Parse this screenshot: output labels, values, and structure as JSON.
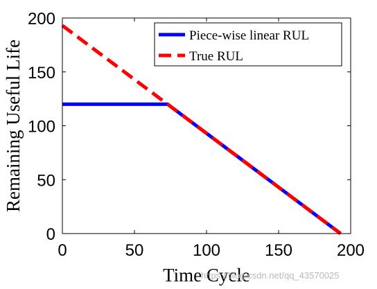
{
  "chart_data": {
    "type": "line",
    "xlabel": "Time Cycle",
    "ylabel": "Remaining Useful Life",
    "xlim": [
      0,
      200
    ],
    "ylim": [
      0,
      200
    ],
    "xticks": [
      0,
      50,
      100,
      150,
      200
    ],
    "yticks": [
      0,
      50,
      100,
      150,
      200
    ],
    "xtick_labels": [
      "0",
      "50",
      "100",
      "150",
      "200"
    ],
    "ytick_labels": [
      "0",
      "50",
      "100",
      "150",
      "200"
    ],
    "grid": false,
    "legend_position": "top-right",
    "series": [
      {
        "name": "Piece-wise linear RUL",
        "color": "#0000ff",
        "style": "solid",
        "x": [
          0,
          73,
          193
        ],
        "y": [
          120,
          120,
          0
        ]
      },
      {
        "name": "True RUL",
        "color": "#ff0000",
        "style": "dashed",
        "x": [
          0,
          193
        ],
        "y": [
          193,
          0
        ]
      }
    ]
  },
  "watermark": "https://blog.csdn.net/qq_43570025"
}
